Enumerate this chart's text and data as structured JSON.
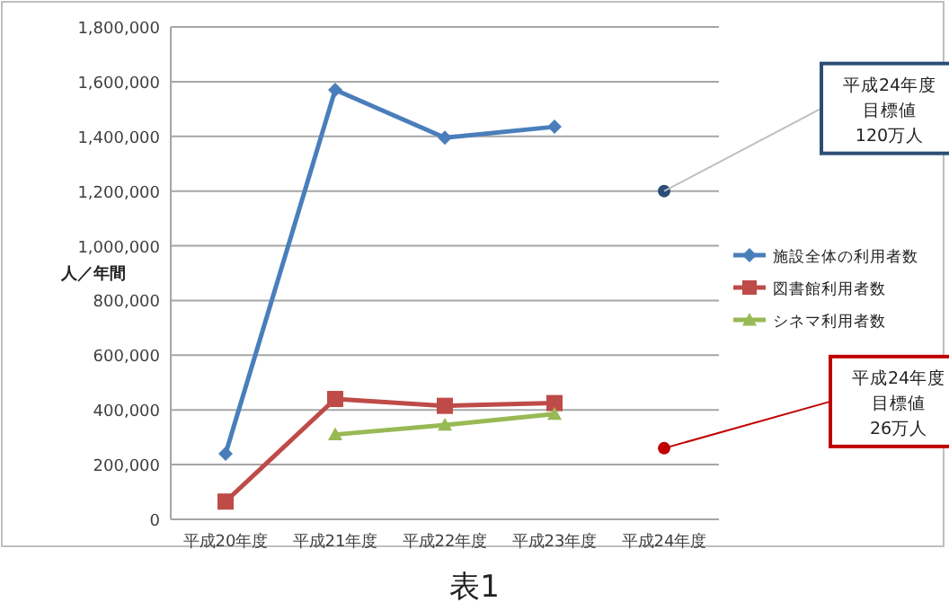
{
  "chart_data": {
    "type": "line",
    "categories": [
      "平成20年度",
      "平成21年度",
      "平成22年度",
      "平成23年度",
      "平成24年度"
    ],
    "ylabel": "人／年間",
    "ylim": [
      0,
      1800000
    ],
    "yticks": [
      {
        "value": 0,
        "label": "0"
      },
      {
        "value": 200000,
        "label": "200,000"
      },
      {
        "value": 400000,
        "label": "400,000"
      },
      {
        "value": 600000,
        "label": "600,000"
      },
      {
        "value": 800000,
        "label": "800,000"
      },
      {
        "value": 1000000,
        "label": "1,000,000"
      },
      {
        "value": 1200000,
        "label": "1,200,000"
      },
      {
        "value": 1400000,
        "label": "1,400,000"
      },
      {
        "value": 1600000,
        "label": "1,600,000"
      },
      {
        "value": 1800000,
        "label": "1,800,000"
      }
    ],
    "grid": "y",
    "legend": "right",
    "series": [
      {
        "name": "施設全体の利用者数",
        "color": "#4a7ebb",
        "marker": "diamond",
        "values": [
          240000,
          1570000,
          1395000,
          1435000,
          null
        ]
      },
      {
        "name": "図書館利用者数",
        "color": "#be4b48",
        "marker": "square",
        "values": [
          65000,
          440000,
          415000,
          425000,
          null
        ]
      },
      {
        "name": "シネマ利用者数",
        "color": "#98b954",
        "marker": "triangle",
        "values": [
          null,
          310000,
          345000,
          385000,
          null
        ]
      },
      {
        "type": "scatter",
        "color": "#2c4d75",
        "marker": "circle",
        "values": [
          null,
          null,
          null,
          null,
          1200000
        ]
      },
      {
        "type": "scatter",
        "color": "#c00000",
        "marker": "circle",
        "values": [
          null,
          null,
          null,
          null,
          260000
        ]
      }
    ],
    "annotations": [
      "平成24年度",
      "目標値",
      "120万人",
      "平成24年度",
      "目標値",
      "26万人",
      "表1"
    ]
  }
}
